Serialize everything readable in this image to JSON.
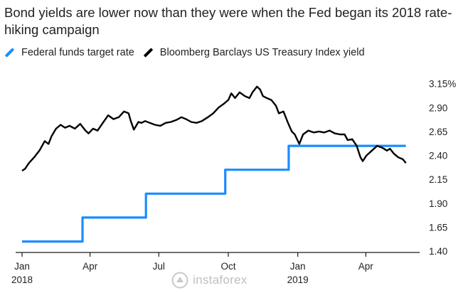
{
  "title": "Bond yields are lower now than they were when the Fed began its 2018 rate-hiking campaign",
  "legend": {
    "ffr_label": "Federal funds target rate",
    "ffr_color": "#1a8cff",
    "tsy_label": "Bloomberg Barclays US Treasury Index yield",
    "tsy_color": "#000000"
  },
  "watermark": {
    "text": "instaforex",
    "logo_icon": "instaforex-logo-icon"
  },
  "chart_data": {
    "type": "line",
    "title": "Bond yields are lower now than they were when the Fed began its 2018 rate-hiking campaign",
    "xlabel": "",
    "ylabel": "",
    "xlim": [
      "2018-01-01",
      "2019-05-31"
    ],
    "ylim": [
      1.4,
      3.2
    ],
    "grid": false,
    "legend_position": "top-left",
    "x_ticks": [
      {
        "date": "2018-01-01",
        "label": "Jan",
        "sublabel": "2018"
      },
      {
        "date": "2018-04-01",
        "label": "Apr",
        "sublabel": ""
      },
      {
        "date": "2018-07-01",
        "label": "Jul",
        "sublabel": ""
      },
      {
        "date": "2018-10-01",
        "label": "Oct",
        "sublabel": ""
      },
      {
        "date": "2019-01-01",
        "label": "Jan",
        "sublabel": "2019"
      },
      {
        "date": "2019-04-01",
        "label": "Apr",
        "sublabel": ""
      }
    ],
    "y_ticks": [
      {
        "value": 3.15,
        "label": "3.15%"
      },
      {
        "value": 2.9,
        "label": "2.90"
      },
      {
        "value": 2.65,
        "label": "2.65"
      },
      {
        "value": 2.4,
        "label": "2.40"
      },
      {
        "value": 2.15,
        "label": "2.15"
      },
      {
        "value": 1.9,
        "label": "1.90"
      },
      {
        "value": 1.65,
        "label": "1.65"
      },
      {
        "value": 1.4,
        "label": "1.40"
      }
    ],
    "series": [
      {
        "name": "Federal funds target rate",
        "color": "#1a8cff",
        "step": true,
        "points": [
          [
            "2018-01-01",
            1.5
          ],
          [
            "2018-03-22",
            1.5
          ],
          [
            "2018-03-22",
            1.75
          ],
          [
            "2018-06-14",
            1.75
          ],
          [
            "2018-06-14",
            2.0
          ],
          [
            "2018-09-27",
            2.0
          ],
          [
            "2018-09-27",
            2.25
          ],
          [
            "2018-12-20",
            2.25
          ],
          [
            "2018-12-20",
            2.5
          ],
          [
            "2019-05-24",
            2.5
          ]
        ]
      },
      {
        "name": "Bloomberg Barclays US Treasury Index yield",
        "color": "#000000",
        "step": false,
        "points": [
          [
            "2018-01-01",
            2.24
          ],
          [
            "2018-01-05",
            2.26
          ],
          [
            "2018-01-10",
            2.32
          ],
          [
            "2018-01-17",
            2.38
          ],
          [
            "2018-01-24",
            2.45
          ],
          [
            "2018-01-31",
            2.55
          ],
          [
            "2018-02-05",
            2.52
          ],
          [
            "2018-02-09",
            2.6
          ],
          [
            "2018-02-15",
            2.68
          ],
          [
            "2018-02-21",
            2.72
          ],
          [
            "2018-02-27",
            2.69
          ],
          [
            "2018-03-05",
            2.71
          ],
          [
            "2018-03-12",
            2.68
          ],
          [
            "2018-03-19",
            2.73
          ],
          [
            "2018-03-26",
            2.66
          ],
          [
            "2018-03-30",
            2.63
          ],
          [
            "2018-04-05",
            2.68
          ],
          [
            "2018-04-11",
            2.66
          ],
          [
            "2018-04-18",
            2.74
          ],
          [
            "2018-04-25",
            2.82
          ],
          [
            "2018-05-02",
            2.78
          ],
          [
            "2018-05-09",
            2.8
          ],
          [
            "2018-05-16",
            2.86
          ],
          [
            "2018-05-22",
            2.84
          ],
          [
            "2018-05-25",
            2.76
          ],
          [
            "2018-05-29",
            2.67
          ],
          [
            "2018-06-04",
            2.75
          ],
          [
            "2018-06-08",
            2.74
          ],
          [
            "2018-06-13",
            2.76
          ],
          [
            "2018-06-19",
            2.74
          ],
          [
            "2018-06-26",
            2.72
          ],
          [
            "2018-07-03",
            2.71
          ],
          [
            "2018-07-10",
            2.74
          ],
          [
            "2018-07-17",
            2.75
          ],
          [
            "2018-07-24",
            2.77
          ],
          [
            "2018-07-31",
            2.8
          ],
          [
            "2018-08-06",
            2.78
          ],
          [
            "2018-08-13",
            2.75
          ],
          [
            "2018-08-20",
            2.74
          ],
          [
            "2018-08-27",
            2.76
          ],
          [
            "2018-09-04",
            2.8
          ],
          [
            "2018-09-11",
            2.84
          ],
          [
            "2018-09-18",
            2.9
          ],
          [
            "2018-09-25",
            2.94
          ],
          [
            "2018-10-01",
            2.98
          ],
          [
            "2018-10-05",
            3.05
          ],
          [
            "2018-10-10",
            3.0
          ],
          [
            "2018-10-16",
            3.06
          ],
          [
            "2018-10-23",
            3.02
          ],
          [
            "2018-10-29",
            3.0
          ],
          [
            "2018-11-02",
            3.06
          ],
          [
            "2018-11-08",
            3.12
          ],
          [
            "2018-11-12",
            3.09
          ],
          [
            "2018-11-16",
            3.02
          ],
          [
            "2018-11-21",
            3.0
          ],
          [
            "2018-11-27",
            2.98
          ],
          [
            "2018-12-03",
            2.92
          ],
          [
            "2018-12-07",
            2.84
          ],
          [
            "2018-12-13",
            2.86
          ],
          [
            "2018-12-19",
            2.74
          ],
          [
            "2018-12-24",
            2.65
          ],
          [
            "2018-12-28",
            2.62
          ],
          [
            "2019-01-03",
            2.52
          ],
          [
            "2019-01-08",
            2.62
          ],
          [
            "2019-01-15",
            2.66
          ],
          [
            "2019-01-22",
            2.64
          ],
          [
            "2019-01-29",
            2.65
          ],
          [
            "2019-02-05",
            2.64
          ],
          [
            "2019-02-12",
            2.66
          ],
          [
            "2019-02-19",
            2.63
          ],
          [
            "2019-02-26",
            2.62
          ],
          [
            "2019-03-04",
            2.62
          ],
          [
            "2019-03-08",
            2.56
          ],
          [
            "2019-03-14",
            2.57
          ],
          [
            "2019-03-20",
            2.5
          ],
          [
            "2019-03-25",
            2.38
          ],
          [
            "2019-03-28",
            2.34
          ],
          [
            "2019-04-02",
            2.4
          ],
          [
            "2019-04-09",
            2.45
          ],
          [
            "2019-04-16",
            2.5
          ],
          [
            "2019-04-23",
            2.48
          ],
          [
            "2019-04-29",
            2.45
          ],
          [
            "2019-05-03",
            2.47
          ],
          [
            "2019-05-08",
            2.42
          ],
          [
            "2019-05-14",
            2.38
          ],
          [
            "2019-05-20",
            2.36
          ],
          [
            "2019-05-24",
            2.32
          ]
        ]
      }
    ]
  }
}
